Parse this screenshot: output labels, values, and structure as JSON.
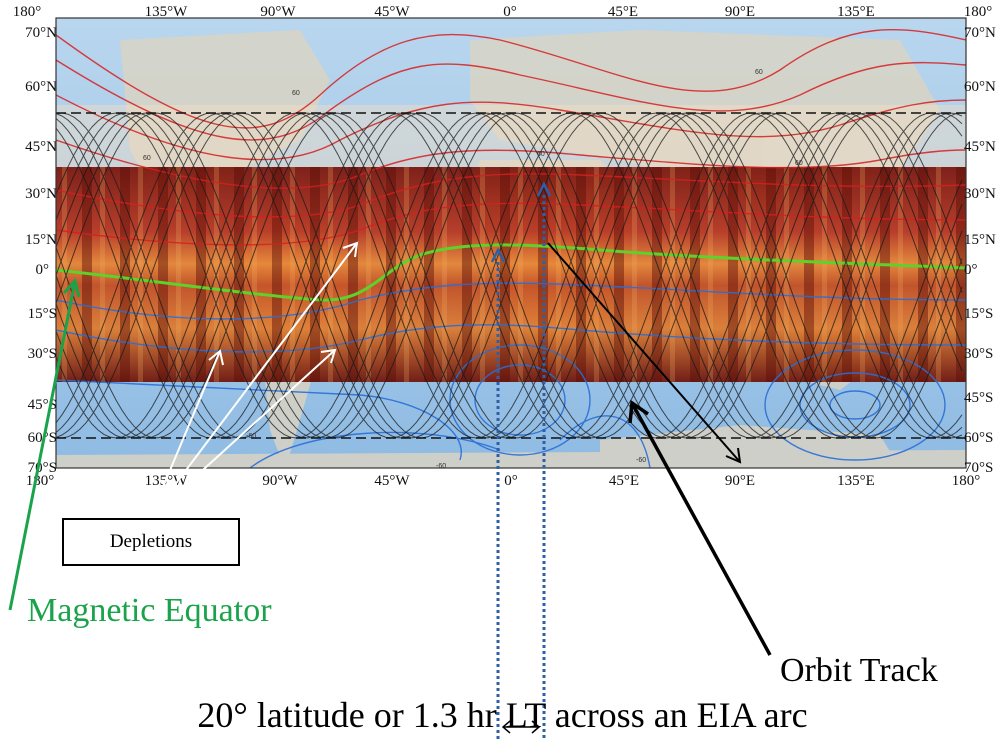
{
  "map": {
    "lon_ticks_top": [
      "180°",
      "135°W",
      "90°W",
      "45°W",
      "0°",
      "45°E",
      "90°E",
      "135°E",
      "180°"
    ],
    "lon_ticks_bottom": [
      "180°",
      "135°W",
      "90°W",
      "45°W",
      "0°",
      "45°E",
      "90°E",
      "135°E",
      "180°"
    ],
    "lat_ticks_left": [
      "70°N",
      "60°N",
      "45°N",
      "30°N",
      "15°N",
      "0°",
      "15°S",
      "30°S",
      "45°S",
      "60°S",
      "70°S"
    ],
    "lat_ticks_right": [
      "70°N",
      "60°N",
      "45°N",
      "30°N",
      "15°N",
      "0°",
      "15°S",
      "30°S",
      "45°S",
      "60°S",
      "70°S"
    ],
    "contour_labels": [
      "60",
      "60",
      "60",
      "60",
      "60",
      "-60",
      "-60",
      "-60"
    ]
  },
  "annotations": {
    "depletions": "Depletions",
    "magnetic_equator": "Magnetic Equator",
    "orbit_track": "Orbit Track",
    "caption": "20° latitude  or 1.3 hr LT across an EIA arc"
  },
  "colors": {
    "magnetic_equator": "#1aa34a",
    "eia_band": "#8b1a0e",
    "ocean": "#9cc3e6",
    "positive_contour": "#d62020",
    "negative_contour": "#2a6fd6",
    "orbit_track": "#1a1a1a",
    "marker": "#2f5fa6"
  }
}
